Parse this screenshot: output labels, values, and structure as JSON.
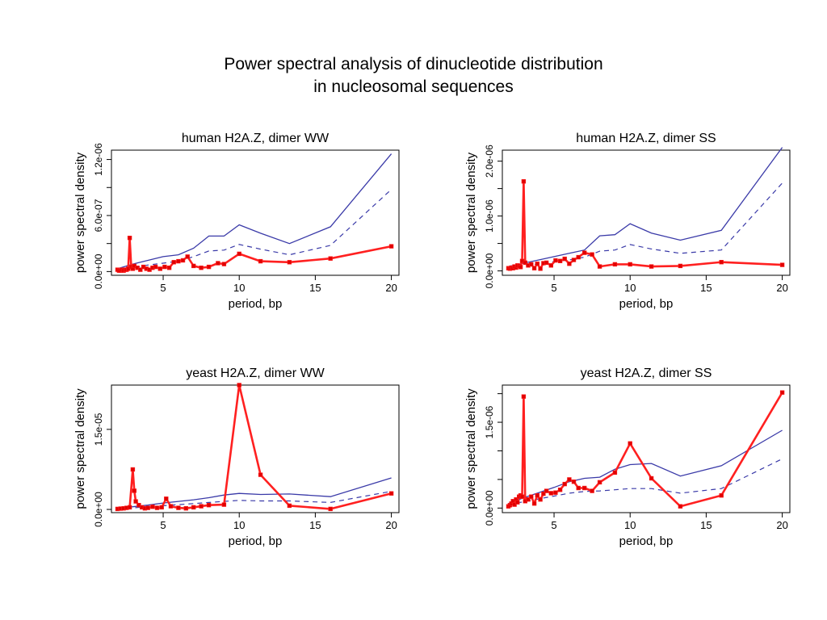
{
  "page": {
    "title_line1": "Power spectral analysis of dinucleotide distribution",
    "title_line2": "in nucleosomal sequences"
  },
  "colors": {
    "observed": "#ff2020",
    "marker": "#e00000",
    "reference": "#3a3aa8",
    "axis": "#000000"
  },
  "chart_data": [
    {
      "type": "line",
      "title": "human H2A.Z, dimer WW",
      "xlabel": "period, bp",
      "ylabel": "power spectral density",
      "xlim": [
        1.6,
        20.5
      ],
      "ylim": [
        -4e-08,
        1.3e-06
      ],
      "xticks": [
        5,
        10,
        15,
        20
      ],
      "xtick_labels": [
        "5",
        "10",
        "15",
        "20"
      ],
      "yticks": [
        0,
        3e-07,
        6e-07,
        9e-07,
        1.2e-06
      ],
      "ytick_labels": [
        "0.0e+00",
        "",
        "6.0e-07",
        "",
        "1.2e-06"
      ],
      "series": [
        {
          "role": "observed",
          "x": [
            2.0,
            2.1,
            2.2,
            2.3,
            2.4,
            2.5,
            2.6,
            2.7,
            2.8,
            2.9,
            3.0,
            3.1,
            3.3,
            3.5,
            3.7,
            3.9,
            4.1,
            4.3,
            4.5,
            4.8,
            5.1,
            5.4,
            5.7,
            6.0,
            6.3,
            6.6,
            7.0,
            7.5,
            8.0,
            8.6,
            9.0,
            10.0,
            11.4,
            13.3,
            16.0,
            20.0
          ],
          "y": [
            2e-08,
            1e-08,
            1e-08,
            2e-08,
            1e-08,
            2e-08,
            2e-08,
            3e-08,
            3.6e-07,
            5e-08,
            3e-08,
            6e-08,
            4e-08,
            2e-08,
            5e-08,
            3e-08,
            2e-08,
            4e-08,
            5e-08,
            3e-08,
            5e-08,
            4e-08,
            1e-07,
            1.1e-07,
            1.2e-07,
            1.6e-07,
            6e-08,
            4e-08,
            5e-08,
            9e-08,
            8e-08,
            1.9e-07,
            1.1e-07,
            1e-07,
            1.4e-07,
            2.7e-07
          ]
        },
        {
          "role": "reference",
          "x": [
            2.0,
            3.0,
            4.0,
            5.0,
            6.0,
            7.0,
            8.0,
            9.0,
            10.0,
            11.4,
            13.3,
            16.0,
            20.0
          ],
          "y": [
            3e-08,
            8e-08,
            1.2e-07,
            1.6e-07,
            1.8e-07,
            2.5e-07,
            3.8e-07,
            3.8e-07,
            5e-07,
            4.1e-07,
            3e-07,
            4.8e-07,
            1.26e-06
          ]
        },
        {
          "role": "reference-dashed",
          "x": [
            2.0,
            3.0,
            4.0,
            5.0,
            6.0,
            7.0,
            8.0,
            9.0,
            10.0,
            11.4,
            13.3,
            16.0,
            20.0
          ],
          "y": [
            2e-08,
            4e-08,
            7e-08,
            9e-08,
            1.1e-07,
            1.6e-07,
            2.2e-07,
            2.3e-07,
            2.9e-07,
            2.4e-07,
            1.8e-07,
            2.8e-07,
            8.8e-07
          ]
        }
      ]
    },
    {
      "type": "line",
      "title": "human H2A.Z, dimer SS",
      "xlabel": "period, bp",
      "ylabel": "power spectral density",
      "xlim": [
        1.6,
        20.5
      ],
      "ylim": [
        -8e-08,
        2.2e-06
      ],
      "xticks": [
        5,
        10,
        15,
        20
      ],
      "xtick_labels": [
        "5",
        "10",
        "15",
        "20"
      ],
      "yticks": [
        0,
        5e-07,
        1e-06,
        1.5e-06,
        2e-06
      ],
      "ytick_labels": [
        "0.0e+00",
        "",
        "1.0e-06",
        "",
        "2.0e-06"
      ],
      "series": [
        {
          "role": "observed",
          "x": [
            2.0,
            2.1,
            2.2,
            2.3,
            2.4,
            2.5,
            2.6,
            2.7,
            2.8,
            2.9,
            3.0,
            3.1,
            3.3,
            3.5,
            3.7,
            3.9,
            4.1,
            4.3,
            4.5,
            4.8,
            5.1,
            5.4,
            5.7,
            6.0,
            6.3,
            6.6,
            7.0,
            7.5,
            8.0,
            9.0,
            10.0,
            11.4,
            13.3,
            16.0,
            20.0
          ],
          "y": [
            5e-08,
            4e-08,
            6e-08,
            5e-08,
            8e-08,
            6e-08,
            1e-07,
            9e-08,
            7e-08,
            1.8e-07,
            1.63e-06,
            1.5e-07,
            1e-07,
            1.2e-07,
            5e-08,
            1.3e-07,
            4e-08,
            1.4e-07,
            1.5e-07,
            1e-07,
            1.9e-07,
            1.8e-07,
            2.2e-07,
            1.3e-07,
            2e-07,
            2.5e-07,
            3.3e-07,
            3e-07,
            8e-08,
            1.2e-07,
            1.2e-07,
            8e-08,
            9e-08,
            1.6e-07,
            1.1e-07
          ]
        },
        {
          "role": "reference",
          "x": [
            2.0,
            3.0,
            4.0,
            5.0,
            6.0,
            7.0,
            8.0,
            9.0,
            10.0,
            11.4,
            13.3,
            16.0,
            20.0
          ],
          "y": [
            8e-08,
            1.4e-07,
            2e-07,
            2.6e-07,
            3.2e-07,
            3.8e-07,
            6.4e-07,
            6.6e-07,
            8.6e-07,
            6.9e-07,
            5.6e-07,
            7.4e-07,
            2.25e-06
          ]
        },
        {
          "role": "reference-dashed",
          "x": [
            2.0,
            3.0,
            4.0,
            5.0,
            6.0,
            7.0,
            8.0,
            9.0,
            10.0,
            11.4,
            13.3,
            16.0,
            20.0
          ],
          "y": [
            5e-08,
            9e-08,
            1.3e-07,
            1.7e-07,
            2e-07,
            2.5e-07,
            3.6e-07,
            3.8e-07,
            4.8e-07,
            4e-07,
            3.2e-07,
            3.8e-07,
            1.6e-06
          ]
        }
      ]
    },
    {
      "type": "line",
      "title": "yeast H2A.Z, dimer WW",
      "xlabel": "period, bp",
      "ylabel": "power spectral density",
      "xlim": [
        1.6,
        20.5
      ],
      "ylim": [
        -6e-07,
        2.33e-05
      ],
      "xticks": [
        5,
        10,
        15,
        20
      ],
      "xtick_labels": [
        "5",
        "10",
        "15",
        "20"
      ],
      "yticks": [
        0,
        1.5e-05
      ],
      "ytick_labels": [
        "0.0e+00",
        "1.5e-05"
      ],
      "series": [
        {
          "role": "observed",
          "x": [
            2.0,
            2.2,
            2.4,
            2.6,
            2.8,
            3.0,
            3.1,
            3.2,
            3.4,
            3.6,
            3.8,
            4.0,
            4.3,
            4.6,
            4.9,
            5.2,
            5.5,
            6.0,
            6.5,
            7.0,
            7.5,
            8.0,
            9.0,
            10.0,
            11.4,
            13.3,
            16.0,
            20.0
          ],
          "y": [
            1e-07,
            1.5e-07,
            2e-07,
            3e-07,
            4e-07,
            7.5e-06,
            3.5e-06,
            1.5e-06,
            8e-07,
            4e-07,
            2e-07,
            3e-07,
            5e-07,
            3e-07,
            4e-07,
            2e-06,
            6e-07,
            3e-07,
            2e-07,
            4e-07,
            6e-07,
            8e-07,
            9e-07,
            2.33e-05,
            6.5e-06,
            7e-07,
            1e-07,
            3e-06
          ]
        },
        {
          "role": "reference",
          "x": [
            2.0,
            3.0,
            4.0,
            5.0,
            6.0,
            7.0,
            8.0,
            9.0,
            10.0,
            11.4,
            13.3,
            16.0,
            20.0
          ],
          "y": [
            3e-07,
            5e-07,
            8e-07,
            1.2e-06,
            1.5e-06,
            1.8e-06,
            2.2e-06,
            2.7e-06,
            3e-06,
            2.8e-06,
            2.9e-06,
            2.4e-06,
            5.9e-06
          ]
        },
        {
          "role": "reference-dashed",
          "x": [
            2.0,
            3.0,
            4.0,
            5.0,
            6.0,
            7.0,
            8.0,
            9.0,
            10.0,
            11.4,
            13.3,
            16.0,
            20.0
          ],
          "y": [
            2e-07,
            3e-07,
            5e-07,
            7e-07,
            9e-07,
            1.1e-06,
            1.3e-06,
            1.5e-06,
            1.7e-06,
            1.6e-06,
            1.6e-06,
            1.3e-06,
            3.4e-06
          ]
        }
      ]
    },
    {
      "type": "line",
      "title": "yeast H2A.Z, dimer SS",
      "xlabel": "period, bp",
      "ylabel": "power spectral density",
      "xlim": [
        1.6,
        20.5
      ],
      "ylim": [
        -8e-08,
        2.15e-06
      ],
      "xticks": [
        5,
        10,
        15,
        20
      ],
      "xtick_labels": [
        "5",
        "10",
        "15",
        "20"
      ],
      "yticks": [
        0,
        5e-07,
        1e-06,
        1.5e-06,
        2e-06
      ],
      "ytick_labels": [
        "0.0e+00",
        "",
        "1.5e-06"
      ],
      "ytick_label_values": [
        0,
        5e-07,
        1.5e-06
      ],
      "series": [
        {
          "role": "observed",
          "x": [
            2.0,
            2.1,
            2.2,
            2.3,
            2.4,
            2.5,
            2.6,
            2.7,
            2.8,
            2.9,
            3.0,
            3.1,
            3.3,
            3.5,
            3.7,
            3.9,
            4.1,
            4.3,
            4.5,
            4.8,
            5.1,
            5.4,
            5.7,
            6.0,
            6.3,
            6.6,
            7.0,
            7.5,
            8.0,
            9.0,
            10.0,
            11.4,
            13.3,
            16.0,
            20.0
          ],
          "y": [
            3e-08,
            5e-08,
            8e-08,
            1.2e-07,
            6e-08,
            1.5e-07,
            1e-07,
            2e-07,
            2.2e-07,
            2e-07,
            1.95e-06,
            1.2e-07,
            1.5e-07,
            2e-07,
            8e-08,
            2.2e-07,
            1.5e-07,
            2.5e-07,
            3e-07,
            2.6e-07,
            2.7e-07,
            3.2e-07,
            4.2e-07,
            5e-07,
            4.6e-07,
            3.5e-07,
            3.5e-07,
            3e-07,
            4.5e-07,
            6.2e-07,
            1.13e-06,
            5.2e-07,
            3e-08,
            2.2e-07,
            2.02e-06
          ]
        },
        {
          "role": "reference",
          "x": [
            2.0,
            3.0,
            4.0,
            5.0,
            6.0,
            7.0,
            8.0,
            9.0,
            10.0,
            11.4,
            13.3,
            16.0,
            20.0
          ],
          "y": [
            8e-08,
            1.8e-07,
            2.7e-07,
            3.6e-07,
            4.6e-07,
            5.2e-07,
            5.4e-07,
            6.8e-07,
            7.6e-07,
            7.8e-07,
            5.6e-07,
            7.4e-07,
            1.36e-06
          ]
        },
        {
          "role": "reference-dashed",
          "x": [
            2.0,
            3.0,
            4.0,
            5.0,
            6.0,
            7.0,
            8.0,
            9.0,
            10.0,
            11.4,
            13.3,
            16.0,
            20.0
          ],
          "y": [
            6e-08,
            1.1e-07,
            1.6e-07,
            2.1e-07,
            2.6e-07,
            2.9e-07,
            3e-07,
            3.2e-07,
            3.4e-07,
            3.4e-07,
            2.6e-07,
            3.4e-07,
            8.6e-07
          ]
        }
      ]
    }
  ]
}
